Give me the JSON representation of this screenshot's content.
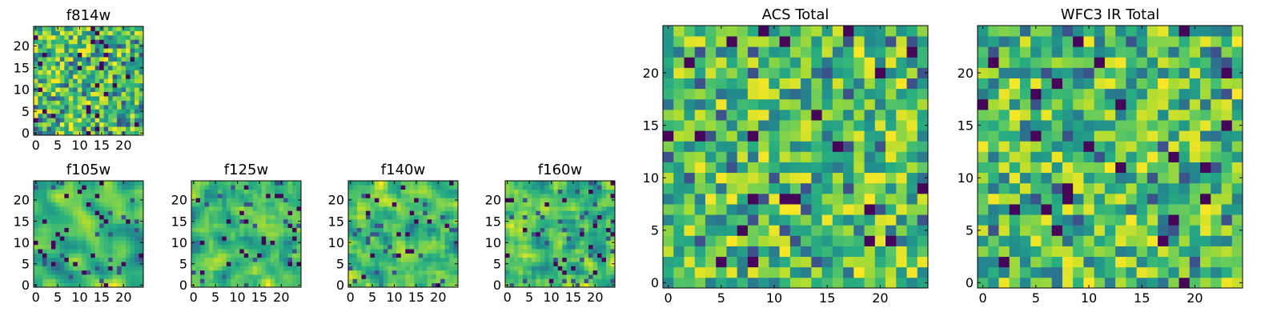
{
  "chart_data": [
    {
      "type": "heatmap",
      "title": "f814w",
      "rows": 25,
      "cols": 25,
      "xticks": [
        "0",
        "5",
        "10",
        "15",
        "20"
      ],
      "yticks": [
        "0",
        "5",
        "10",
        "15",
        "20"
      ],
      "xlim": [
        0,
        25
      ],
      "ylim": [
        0,
        25
      ],
      "colormap": "viridis",
      "seed": 814,
      "smooth": 0
    },
    {
      "type": "heatmap",
      "title": "f105w",
      "rows": 25,
      "cols": 25,
      "xticks": [
        "0",
        "5",
        "10",
        "15",
        "20"
      ],
      "yticks": [
        "0",
        "5",
        "10",
        "15",
        "20"
      ],
      "xlim": [
        0,
        25
      ],
      "ylim": [
        0,
        25
      ],
      "colormap": "viridis",
      "seed": 105,
      "smooth": 2
    },
    {
      "type": "heatmap",
      "title": "f125w",
      "rows": 25,
      "cols": 25,
      "xticks": [
        "0",
        "5",
        "10",
        "15",
        "20"
      ],
      "yticks": [
        "0",
        "5",
        "10",
        "15",
        "20"
      ],
      "xlim": [
        0,
        25
      ],
      "ylim": [
        0,
        25
      ],
      "colormap": "viridis",
      "seed": 125,
      "smooth": 1
    },
    {
      "type": "heatmap",
      "title": "f140w",
      "rows": 25,
      "cols": 25,
      "xticks": [
        "0",
        "5",
        "10",
        "15",
        "20"
      ],
      "yticks": [
        "0",
        "5",
        "10",
        "15",
        "20"
      ],
      "xlim": [
        0,
        25
      ],
      "ylim": [
        0,
        25
      ],
      "colormap": "viridis",
      "seed": 140,
      "smooth": 1
    },
    {
      "type": "heatmap",
      "title": "f160w",
      "rows": 25,
      "cols": 25,
      "xticks": [
        "0",
        "5",
        "10",
        "15",
        "20"
      ],
      "yticks": [
        "0",
        "5",
        "10",
        "15",
        "20"
      ],
      "xlim": [
        0,
        25
      ],
      "ylim": [
        0,
        25
      ],
      "colormap": "viridis",
      "seed": 160,
      "smooth": 1
    },
    {
      "type": "heatmap",
      "title": "ACS Total",
      "rows": 25,
      "cols": 25,
      "xticks": [
        "0",
        "5",
        "10",
        "15",
        "20"
      ],
      "yticks": [
        "0",
        "5",
        "10",
        "15",
        "20"
      ],
      "xlim": [
        0,
        25
      ],
      "ylim": [
        0,
        25
      ],
      "colormap": "viridis",
      "seed": 2001,
      "smooth": 0
    },
    {
      "type": "heatmap",
      "title": "WFC3 IR Total",
      "rows": 25,
      "cols": 25,
      "xticks": [
        "0",
        "5",
        "10",
        "15",
        "20"
      ],
      "yticks": [
        "0",
        "5",
        "10",
        "15",
        "20"
      ],
      "xlim": [
        0,
        25
      ],
      "ylim": [
        0,
        25
      ],
      "colormap": "viridis",
      "seed": 3003,
      "smooth": 0
    }
  ]
}
